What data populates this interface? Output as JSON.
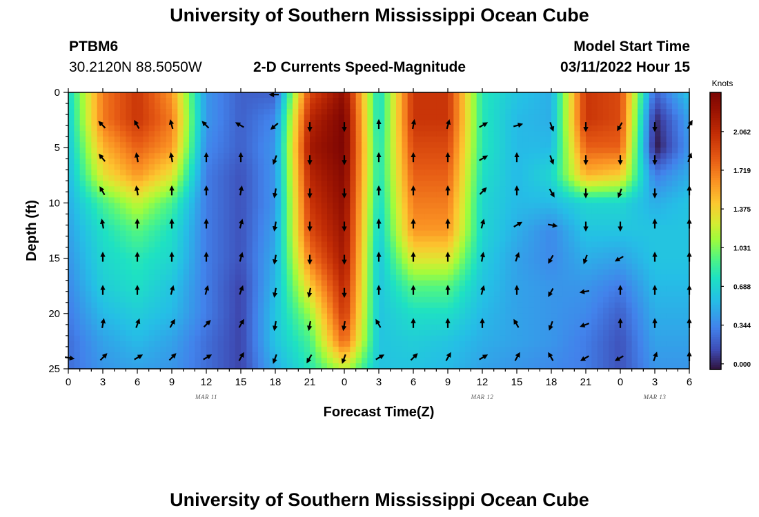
{
  "header": {
    "title": "University of Southern Mississippi Ocean Cube",
    "station_id": "PTBM6",
    "station_coords": "30.2120N  88.5050W",
    "plot_title": "2-D Currents Speed-Magnitude",
    "model_start_label": "Model Start Time",
    "model_start_value": "03/11/2022 Hour 15"
  },
  "footer": {
    "title": "University of Southern Mississippi Ocean Cube"
  },
  "chart_data": {
    "type": "heatmap",
    "title": "2-D Currents Speed-Magnitude",
    "xlabel": "Forecast Time(Z)",
    "ylabel": "Depth (ft)",
    "ylim": [
      0,
      25
    ],
    "xlim": [
      0,
      54
    ],
    "x_units": "hours from 03/11 00Z",
    "x_ticks": [
      0,
      3,
      6,
      9,
      12,
      15,
      18,
      21,
      24,
      27,
      30,
      33,
      36,
      39,
      42,
      45,
      48,
      51,
      54
    ],
    "x_tick_labels": [
      "0",
      "3",
      "6",
      "9",
      "12",
      "15",
      "18",
      "21",
      "0",
      "3",
      "6",
      "9",
      "12",
      "15",
      "18",
      "21",
      "0",
      "3",
      "6"
    ],
    "y_ticks": [
      0,
      5,
      10,
      15,
      20,
      25
    ],
    "y_tick_labels": [
      "0",
      "5",
      "10",
      "15",
      "20",
      "25"
    ],
    "date_labels": [
      {
        "text": "MAR 11",
        "x": 12
      },
      {
        "text": "MAR 12",
        "x": 36
      },
      {
        "text": "MAR 13",
        "x": 51
      }
    ],
    "colorbar": {
      "title": "Knots",
      "ticks": [
        0.0,
        0.344,
        0.688,
        1.031,
        1.375,
        1.719,
        2.062
      ],
      "tick_labels": [
        "0.000",
        "0.344",
        "0.688",
        "1.031",
        "1.375",
        "1.719",
        "2.062"
      ],
      "range": [
        -0.05,
        2.41
      ]
    },
    "speed_grid": {
      "depths": [
        0,
        2.5,
        5,
        7.5,
        10,
        12.5,
        15,
        17.5,
        20,
        22.5,
        25
      ],
      "hours": [
        0,
        3,
        6,
        9,
        12,
        15,
        18,
        21,
        24,
        27,
        30,
        33,
        36,
        39,
        42,
        45,
        48,
        51,
        54
      ],
      "values": [
        [
          0.7,
          1.7,
          2.0,
          1.6,
          0.4,
          0.2,
          0.2,
          1.9,
          2.3,
          0.7,
          2.0,
          2.0,
          0.8,
          0.6,
          0.5,
          2.0,
          1.9,
          0.2,
          0.6
        ],
        [
          0.65,
          1.7,
          2.0,
          1.7,
          0.4,
          0.2,
          0.35,
          2.1,
          2.4,
          0.7,
          2.0,
          2.0,
          0.8,
          0.55,
          0.5,
          2.0,
          1.9,
          0.0,
          0.45
        ],
        [
          0.6,
          1.5,
          1.8,
          1.6,
          0.35,
          0.2,
          0.4,
          2.2,
          2.4,
          0.75,
          1.9,
          1.9,
          0.8,
          0.55,
          0.55,
          1.8,
          1.8,
          -0.05,
          0.4
        ],
        [
          0.55,
          1.3,
          1.6,
          1.3,
          0.3,
          0.15,
          0.4,
          2.1,
          2.35,
          0.75,
          1.8,
          1.8,
          0.75,
          0.55,
          0.7,
          1.5,
          1.4,
          0.3,
          0.5
        ],
        [
          0.5,
          0.9,
          1.2,
          0.9,
          0.3,
          0.15,
          0.4,
          2.0,
          2.3,
          0.7,
          1.7,
          1.7,
          0.7,
          0.55,
          0.55,
          0.7,
          0.7,
          0.5,
          0.6
        ],
        [
          0.45,
          0.75,
          0.95,
          0.75,
          0.3,
          0.15,
          0.45,
          1.9,
          2.25,
          0.65,
          1.6,
          1.6,
          0.7,
          0.5,
          0.35,
          0.6,
          0.6,
          0.6,
          0.6
        ],
        [
          0.4,
          0.7,
          0.8,
          0.7,
          0.3,
          0.15,
          0.5,
          1.7,
          2.2,
          0.6,
          1.3,
          1.3,
          0.65,
          0.45,
          0.35,
          0.5,
          0.45,
          0.6,
          0.6
        ],
        [
          0.35,
          0.65,
          0.75,
          0.6,
          0.3,
          0.1,
          0.55,
          1.4,
          2.1,
          0.6,
          0.95,
          0.95,
          0.6,
          0.45,
          0.4,
          0.4,
          0.3,
          0.55,
          0.55
        ],
        [
          0.3,
          0.55,
          0.65,
          0.55,
          0.3,
          0.1,
          0.6,
          1.1,
          2.0,
          0.6,
          0.75,
          0.75,
          0.55,
          0.45,
          0.4,
          0.35,
          0.2,
          0.5,
          0.5
        ],
        [
          0.25,
          0.45,
          0.55,
          0.45,
          0.25,
          0.1,
          0.6,
          0.9,
          1.8,
          0.6,
          0.65,
          0.6,
          0.5,
          0.45,
          0.4,
          0.3,
          0.15,
          0.45,
          0.45
        ],
        [
          0.25,
          0.4,
          0.45,
          0.4,
          0.25,
          0.1,
          0.5,
          0.8,
          1.2,
          0.6,
          0.6,
          0.55,
          0.45,
          0.4,
          0.35,
          0.3,
          0.15,
          0.4,
          0.4
        ]
      ]
    },
    "vectors": {
      "hours": [
        3,
        6,
        9,
        12,
        15,
        18,
        21,
        24,
        27,
        30,
        33,
        36,
        39,
        42,
        45,
        48,
        51,
        54
      ],
      "depths": [
        3,
        6,
        9,
        12,
        15,
        18,
        21,
        24
      ],
      "note": "current direction in compass degrees (0 = toward north / up)",
      "directions": [
        [
          315,
          330,
          345,
          315,
          300,
          230,
          180,
          180,
          0,
          10,
          15,
          60,
          75,
          160,
          180,
          210,
          180,
          30
        ],
        [
          320,
          350,
          350,
          0,
          0,
          200,
          180,
          180,
          0,
          0,
          0,
          60,
          0,
          160,
          180,
          180,
          180,
          20
        ],
        [
          330,
          350,
          0,
          0,
          10,
          190,
          180,
          180,
          0,
          0,
          0,
          45,
          0,
          150,
          180,
          200,
          180,
          0
        ],
        [
          350,
          0,
          0,
          0,
          15,
          190,
          180,
          180,
          0,
          0,
          0,
          15,
          60,
          100,
          180,
          180,
          0,
          0
        ],
        [
          0,
          0,
          0,
          0,
          15,
          190,
          180,
          180,
          0,
          0,
          0,
          10,
          20,
          210,
          200,
          240,
          0,
          0
        ],
        [
          0,
          0,
          15,
          15,
          20,
          190,
          190,
          180,
          0,
          0,
          0,
          15,
          0,
          210,
          260,
          0,
          0,
          0
        ],
        [
          10,
          20,
          30,
          45,
          30,
          190,
          190,
          190,
          330,
          0,
          0,
          0,
          330,
          200,
          250,
          0,
          0,
          0
        ],
        [
          45,
          60,
          45,
          60,
          30,
          200,
          210,
          200,
          60,
          45,
          30,
          60,
          30,
          330,
          240,
          240,
          20,
          0
        ]
      ],
      "extra": [
        {
          "hour": 0,
          "depth": 24,
          "direction": 100
        },
        {
          "hour": 18,
          "depth": 0.2,
          "direction": 270
        }
      ]
    }
  }
}
